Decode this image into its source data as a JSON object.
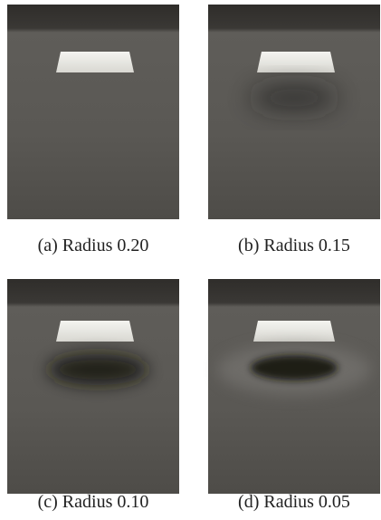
{
  "figure": {
    "panels": [
      {
        "caption": "(a) Radius 0.20"
      },
      {
        "caption": "(b) Radius 0.15"
      },
      {
        "caption": "(c) Radius 0.10"
      },
      {
        "caption": "(d) Radius 0.05"
      }
    ]
  }
}
